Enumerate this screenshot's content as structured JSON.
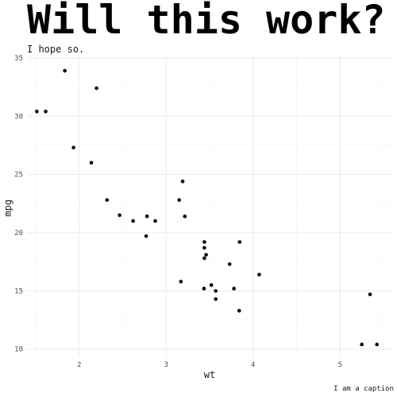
{
  "chart_data": {
    "type": "scatter",
    "title": "Will this work?",
    "subtitle": "I hope so.",
    "caption": "I am a caption",
    "xlabel": "wt",
    "ylabel": "mpg",
    "xlim": [
      1.4,
      5.6
    ],
    "ylim": [
      9.3,
      35.2
    ],
    "x_ticks": [
      2,
      3,
      4,
      5
    ],
    "y_ticks": [
      10,
      15,
      20,
      25,
      30,
      35
    ],
    "x_minor": [
      1.5,
      2.5,
      3.5,
      4.5,
      5.5
    ],
    "y_minor": [
      12.5,
      17.5,
      22.5,
      27.5,
      32.5
    ],
    "grid": true,
    "legend": "none",
    "points": [
      {
        "x": 1.513,
        "y": 30.4
      },
      {
        "x": 1.615,
        "y": 30.4
      },
      {
        "x": 1.835,
        "y": 33.9
      },
      {
        "x": 1.935,
        "y": 27.3
      },
      {
        "x": 2.14,
        "y": 26.0
      },
      {
        "x": 2.2,
        "y": 32.4
      },
      {
        "x": 2.32,
        "y": 22.8
      },
      {
        "x": 2.465,
        "y": 21.5
      },
      {
        "x": 2.62,
        "y": 21.0
      },
      {
        "x": 2.77,
        "y": 19.7
      },
      {
        "x": 2.78,
        "y": 21.4
      },
      {
        "x": 2.875,
        "y": 21.0
      },
      {
        "x": 3.15,
        "y": 22.8
      },
      {
        "x": 3.17,
        "y": 15.8
      },
      {
        "x": 3.19,
        "y": 24.4
      },
      {
        "x": 3.215,
        "y": 21.4
      },
      {
        "x": 3.435,
        "y": 15.2
      },
      {
        "x": 3.44,
        "y": 18.7
      },
      {
        "x": 3.44,
        "y": 19.2
      },
      {
        "x": 3.44,
        "y": 17.8
      },
      {
        "x": 3.46,
        "y": 18.1
      },
      {
        "x": 3.52,
        "y": 15.5
      },
      {
        "x": 3.57,
        "y": 15.0
      },
      {
        "x": 3.57,
        "y": 14.3
      },
      {
        "x": 3.73,
        "y": 17.3
      },
      {
        "x": 3.78,
        "y": 15.2
      },
      {
        "x": 3.84,
        "y": 13.3
      },
      {
        "x": 3.845,
        "y": 19.2
      },
      {
        "x": 4.07,
        "y": 16.4
      },
      {
        "x": 5.25,
        "y": 10.4
      },
      {
        "x": 5.345,
        "y": 14.7
      },
      {
        "x": 5.424,
        "y": 10.4
      }
    ]
  }
}
